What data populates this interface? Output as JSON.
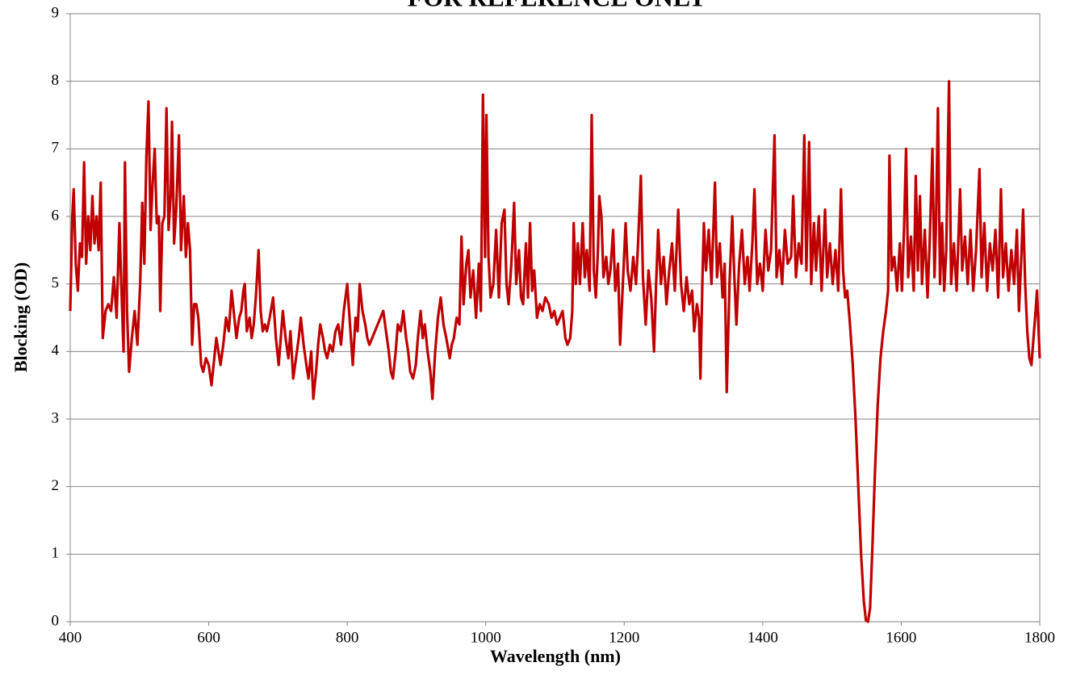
{
  "chart_data": {
    "type": "line",
    "title": "FOR REFERENCE ONLY",
    "xlabel": "Wavelength (nm)",
    "ylabel": "Blocking (OD)",
    "xlim": [
      400,
      1800
    ],
    "xticks": [
      400,
      600,
      800,
      1000,
      1200,
      1400,
      1600,
      1800
    ],
    "ylim": [
      0,
      9
    ],
    "yticks": [
      0,
      1,
      2,
      3,
      4,
      5,
      6,
      7,
      8,
      9
    ],
    "grid": true,
    "x": [
      400,
      403,
      405,
      408,
      411,
      414,
      417,
      420,
      423,
      426,
      429,
      432,
      435,
      438,
      441,
      444,
      447,
      451,
      455,
      459,
      463,
      467,
      471,
      474,
      477,
      479,
      482,
      485,
      489,
      493,
      497,
      501,
      504,
      507,
      510,
      513,
      516,
      519,
      522,
      525,
      528,
      530,
      533,
      536,
      539,
      542,
      545,
      547,
      550,
      553,
      557,
      560,
      564,
      567,
      570,
      573,
      576,
      579,
      582,
      585,
      589,
      592,
      596,
      600,
      604,
      608,
      611,
      614,
      617,
      621,
      625,
      629,
      633,
      636,
      640,
      644,
      647,
      650,
      652,
      655,
      659,
      662,
      665,
      668,
      672,
      675,
      678,
      681,
      684,
      688,
      693,
      697,
      701,
      704,
      707,
      711,
      715,
      718,
      722,
      726,
      730,
      733,
      737,
      741,
      744,
      748,
      751,
      755,
      758,
      761,
      765,
      768,
      771,
      775,
      779,
      783,
      787,
      791,
      795,
      800,
      804,
      808,
      812,
      815,
      818,
      822,
      826,
      829,
      832,
      836,
      840,
      844,
      848,
      852,
      856,
      860,
      863,
      866,
      870,
      873,
      877,
      881,
      885,
      888,
      891,
      895,
      899,
      902,
      906,
      909,
      912,
      916,
      920,
      923,
      927,
      931,
      935,
      939,
      943,
      948,
      951,
      954,
      958,
      962,
      965,
      968,
      972,
      975,
      978,
      982,
      986,
      990,
      993,
      996,
      999,
      1001,
      1004,
      1007,
      1011,
      1015,
      1019,
      1023,
      1027,
      1030,
      1033,
      1037,
      1041,
      1044,
      1048,
      1051,
      1054,
      1058,
      1061,
      1064,
      1067,
      1070,
      1074,
      1078,
      1082,
      1086,
      1091,
      1095,
      1099,
      1103,
      1107,
      1111,
      1115,
      1118,
      1122,
      1125,
      1127,
      1130,
      1133,
      1136,
      1140,
      1143,
      1146,
      1150,
      1153,
      1156,
      1159,
      1162,
      1164,
      1167,
      1170,
      1174,
      1177,
      1180,
      1184,
      1187,
      1191,
      1194,
      1198,
      1202,
      1205,
      1209,
      1213,
      1217,
      1220,
      1224,
      1227,
      1231,
      1235,
      1239,
      1243,
      1246,
      1249,
      1253,
      1257,
      1261,
      1265,
      1269,
      1273,
      1278,
      1282,
      1286,
      1290,
      1294,
      1298,
      1301,
      1305,
      1308,
      1310,
      1313,
      1315,
      1318,
      1322,
      1326,
      1331,
      1334,
      1338,
      1342,
      1345,
      1348,
      1352,
      1356,
      1359,
      1362,
      1366,
      1370,
      1374,
      1378,
      1381,
      1385,
      1388,
      1392,
      1396,
      1400,
      1404,
      1408,
      1412,
      1417,
      1420,
      1424,
      1428,
      1432,
      1436,
      1441,
      1444,
      1448,
      1452,
      1456,
      1460,
      1463,
      1467,
      1470,
      1474,
      1477,
      1481,
      1485,
      1490,
      1493,
      1497,
      1501,
      1505,
      1509,
      1513,
      1516,
      1519,
      1522,
      1526,
      1530,
      1534,
      1538,
      1542,
      1546,
      1549,
      1552,
      1555,
      1558,
      1562,
      1566,
      1570,
      1574,
      1578,
      1581,
      1583,
      1586,
      1590,
      1594,
      1598,
      1601,
      1604,
      1607,
      1610,
      1614,
      1618,
      1621,
      1624,
      1627,
      1630,
      1634,
      1638,
      1641,
      1645,
      1648,
      1650,
      1653,
      1656,
      1659,
      1662,
      1665,
      1669,
      1672,
      1676,
      1680,
      1685,
      1688,
      1692,
      1696,
      1700,
      1704,
      1708,
      1713,
      1716,
      1720,
      1724,
      1728,
      1732,
      1736,
      1740,
      1744,
      1747,
      1751,
      1755,
      1759,
      1763,
      1767,
      1770,
      1773,
      1776,
      1779,
      1782,
      1785,
      1788,
      1791,
      1794,
      1796,
      1798,
      1800
    ],
    "series": [
      {
        "color": "#c00000",
        "values": [
          4.6,
          6.0,
          6.4,
          5.3,
          4.9,
          5.6,
          5.4,
          6.8,
          5.3,
          6.0,
          5.5,
          6.3,
          5.6,
          6.0,
          5.5,
          6.5,
          4.2,
          4.6,
          4.7,
          4.6,
          5.1,
          4.5,
          5.9,
          4.9,
          4.0,
          6.8,
          4.6,
          3.7,
          4.2,
          4.6,
          4.1,
          5.0,
          6.2,
          5.3,
          6.9,
          7.7,
          5.8,
          6.5,
          7.0,
          5.9,
          6.0,
          4.6,
          5.9,
          6.0,
          7.6,
          5.8,
          6.3,
          7.4,
          5.6,
          6.1,
          7.2,
          5.5,
          6.3,
          5.4,
          5.9,
          5.5,
          4.1,
          4.7,
          4.7,
          4.5,
          3.8,
          3.7,
          3.9,
          3.8,
          3.5,
          3.9,
          4.2,
          4.0,
          3.8,
          4.1,
          4.5,
          4.3,
          4.9,
          4.6,
          4.2,
          4.5,
          4.6,
          4.9,
          5.0,
          4.3,
          4.5,
          4.2,
          4.4,
          4.8,
          5.5,
          4.6,
          4.3,
          4.4,
          4.3,
          4.5,
          4.8,
          4.2,
          3.8,
          4.2,
          4.6,
          4.2,
          3.9,
          4.3,
          3.6,
          3.9,
          4.2,
          4.5,
          4.1,
          3.8,
          3.6,
          4.0,
          3.3,
          3.7,
          4.1,
          4.4,
          4.2,
          4.0,
          3.9,
          4.1,
          4.0,
          4.3,
          4.4,
          4.1,
          4.6,
          5.0,
          4.4,
          3.8,
          4.5,
          4.3,
          5.0,
          4.6,
          4.4,
          4.2,
          4.1,
          4.2,
          4.3,
          4.4,
          4.5,
          4.6,
          4.3,
          4.0,
          3.7,
          3.6,
          4.0,
          4.4,
          4.3,
          4.6,
          4.2,
          4.0,
          3.7,
          3.6,
          3.8,
          4.2,
          4.6,
          4.2,
          4.4,
          4.0,
          3.7,
          3.3,
          4.0,
          4.5,
          4.8,
          4.4,
          4.2,
          3.9,
          4.1,
          4.2,
          4.5,
          4.4,
          5.7,
          4.7,
          5.3,
          5.5,
          4.8,
          5.2,
          4.5,
          5.3,
          4.6,
          7.8,
          5.4,
          7.5,
          5.4,
          4.8,
          5.0,
          5.8,
          4.8,
          5.9,
          6.1,
          5.0,
          4.7,
          5.3,
          6.2,
          5.0,
          5.5,
          4.8,
          4.7,
          5.6,
          4.8,
          5.9,
          4.9,
          5.2,
          4.5,
          4.7,
          4.6,
          4.8,
          4.7,
          4.5,
          4.6,
          4.4,
          4.5,
          4.6,
          4.2,
          4.1,
          4.2,
          4.6,
          5.9,
          5.0,
          5.6,
          5.0,
          5.9,
          5.1,
          5.5,
          4.9,
          7.5,
          5.2,
          4.8,
          5.5,
          6.3,
          6.0,
          5.1,
          5.4,
          5.0,
          5.2,
          5.8,
          4.9,
          5.3,
          4.1,
          5.0,
          5.9,
          5.2,
          4.9,
          5.4,
          5.0,
          5.6,
          6.6,
          5.1,
          4.4,
          5.2,
          4.8,
          4.0,
          5.0,
          5.8,
          5.0,
          5.4,
          4.7,
          5.2,
          5.6,
          4.9,
          6.1,
          5.0,
          4.6,
          5.1,
          4.7,
          4.9,
          4.3,
          4.7,
          4.5,
          3.6,
          5.1,
          5.9,
          5.2,
          5.8,
          5.0,
          6.5,
          5.1,
          5.6,
          4.8,
          5.3,
          3.4,
          5.0,
          6.0,
          5.1,
          4.4,
          5.3,
          5.8,
          5.0,
          5.4,
          4.9,
          5.6,
          6.4,
          5.0,
          5.3,
          4.9,
          5.8,
          5.2,
          5.5,
          7.2,
          5.1,
          5.5,
          5.0,
          5.8,
          5.3,
          5.4,
          6.3,
          5.1,
          5.6,
          5.3,
          7.2,
          5.2,
          7.1,
          5.0,
          5.9,
          5.2,
          6.0,
          4.9,
          6.1,
          5.1,
          5.6,
          5.0,
          5.5,
          4.9,
          6.4,
          5.2,
          4.8,
          4.9,
          4.4,
          3.8,
          3.0,
          2.0,
          1.0,
          0.3,
          0.02,
          0.0,
          0.2,
          1.0,
          2.2,
          3.2,
          3.9,
          4.3,
          4.6,
          4.9,
          6.9,
          5.2,
          5.4,
          4.9,
          5.6,
          4.9,
          5.8,
          7.0,
          5.1,
          5.7,
          4.9,
          6.6,
          5.2,
          6.3,
          5.0,
          5.8,
          4.8,
          5.6,
          7.0,
          5.1,
          5.8,
          7.6,
          5.0,
          5.9,
          4.9,
          5.5,
          8.0,
          5.0,
          5.6,
          4.9,
          6.4,
          5.2,
          5.7,
          5.0,
          5.8,
          4.9,
          5.5,
          6.7,
          5.1,
          5.9,
          4.9,
          5.6,
          5.2,
          5.8,
          4.8,
          6.4,
          5.1,
          5.6,
          4.9,
          5.5,
          5.0,
          5.8,
          4.6,
          5.3,
          6.1,
          5.0,
          4.3,
          3.9,
          3.8,
          4.2,
          4.6,
          4.9,
          4.4,
          3.9
        ]
      }
    ]
  }
}
